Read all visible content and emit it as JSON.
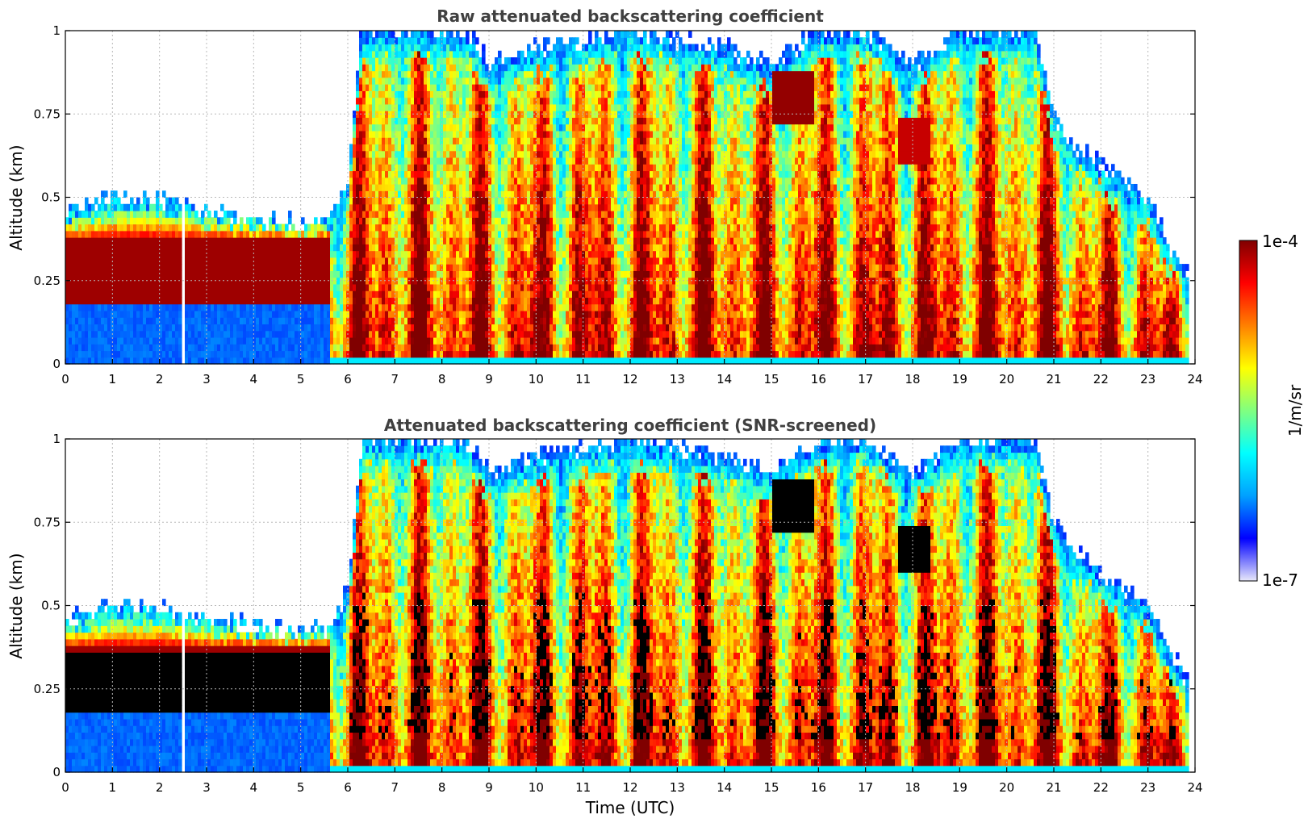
{
  "chart_data": [
    {
      "type": "heatmap",
      "title": "Raw attenuated backscattering coefficient",
      "xlabel": "",
      "ylabel": "Altitude (km)",
      "xlim": [
        0,
        24
      ],
      "ylim": [
        0,
        1
      ],
      "x_ticks": [
        "0",
        "1",
        "2",
        "3",
        "4",
        "5",
        "6",
        "7",
        "8",
        "9",
        "10",
        "11",
        "12",
        "13",
        "14",
        "15",
        "16",
        "17",
        "18",
        "19",
        "20",
        "21",
        "22",
        "23",
        "24"
      ],
      "y_ticks": [
        "0",
        "0.25",
        "0.5",
        "0.75",
        "1"
      ],
      "grid": true,
      "data_gap_utc": [
        2.45,
        2.55
      ],
      "top_signal_altitude_km": [
        [
          0,
          0.45
        ],
        [
          1,
          0.5
        ],
        [
          2,
          0.5
        ],
        [
          2.4,
          0.48
        ],
        [
          2.6,
          0.48
        ],
        [
          3,
          0.46
        ],
        [
          4,
          0.44
        ],
        [
          5,
          0.42
        ],
        [
          5.6,
          0.44
        ],
        [
          6,
          0.55
        ],
        [
          6.3,
          1.0
        ],
        [
          8.5,
          1.0
        ],
        [
          9,
          0.9
        ],
        [
          10,
          0.95
        ],
        [
          12,
          1.0
        ],
        [
          14,
          0.95
        ],
        [
          15,
          0.9
        ],
        [
          16,
          1.0
        ],
        [
          17,
          1.0
        ],
        [
          18,
          0.9
        ],
        [
          19,
          1.0
        ],
        [
          20.6,
          1.0
        ],
        [
          21,
          0.75
        ],
        [
          21.5,
          0.65
        ],
        [
          22,
          0.6
        ],
        [
          22.5,
          0.55
        ],
        [
          23,
          0.5
        ],
        [
          23.5,
          0.35
        ],
        [
          23.85,
          0.28
        ]
      ],
      "features": [
        {
          "name": "nocturnal aerosol layer",
          "t_range": [
            0,
            5.6
          ],
          "alt_range_km": [
            0.18,
            0.38
          ],
          "level": "1e-4"
        },
        {
          "name": "surface layer low signal",
          "t_range": [
            0,
            5.6
          ],
          "alt_range_km": [
            0,
            0.18
          ],
          "level": "~1e-6"
        },
        {
          "name": "boundary layer",
          "t_range": [
            5.6,
            23.85
          ],
          "alt_range_km": [
            0,
            0.5
          ],
          "level": "3e-5 to 1e-4"
        },
        {
          "name": "elevated cloud",
          "t_range": [
            15.0,
            15.9
          ],
          "alt_range_km": [
            0.72,
            0.88
          ],
          "level": "1e-4"
        }
      ]
    },
    {
      "type": "heatmap",
      "title": "Attenuated backscattering coefficient (SNR-screened)",
      "xlabel": "Time (UTC)",
      "ylabel": "Altitude (km)",
      "xlim": [
        0,
        24
      ],
      "ylim": [
        0,
        1
      ],
      "x_ticks": [
        "0",
        "1",
        "2",
        "3",
        "4",
        "5",
        "6",
        "7",
        "8",
        "9",
        "10",
        "11",
        "12",
        "13",
        "14",
        "15",
        "16",
        "17",
        "18",
        "19",
        "20",
        "21",
        "22",
        "23",
        "24"
      ],
      "y_ticks": [
        "0",
        "0.25",
        "0.5",
        "0.75",
        "1"
      ],
      "grid": true,
      "data_gap_utc": [
        2.45,
        2.55
      ],
      "screened_color": "#000000",
      "features": [
        {
          "name": "screened aerosol layer",
          "t_range": [
            0,
            6.0
          ],
          "alt_range_km": [
            0.18,
            0.36
          ]
        },
        {
          "name": "screened cloud",
          "t_range": [
            15.0,
            15.9
          ],
          "alt_range_km": [
            0.7,
            0.88
          ]
        },
        {
          "name": "screened cloud",
          "t_range": [
            17.7,
            18.4
          ],
          "alt_range_km": [
            0.6,
            0.75
          ]
        },
        {
          "name": "screened layer",
          "t_range": [
            22.0,
            23.85
          ],
          "alt_range_km": [
            0.1,
            0.45
          ]
        }
      ]
    }
  ],
  "colorbar": {
    "label": "1/m/sr",
    "max_label": "1e-4",
    "min_label": "1e-7",
    "colormap": [
      "#e8e8fa",
      "#0000ff",
      "#00a0ff",
      "#00ffff",
      "#80ff80",
      "#ffff00",
      "#ff8000",
      "#ff0000",
      "#800000"
    ]
  }
}
